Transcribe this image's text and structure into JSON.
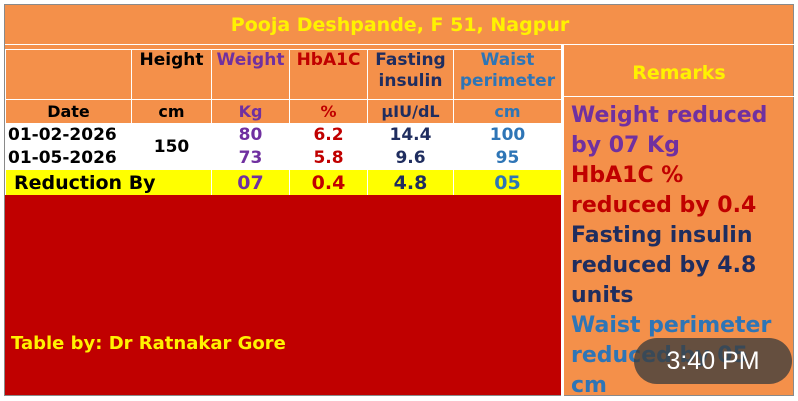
{
  "title": "Pooja Deshpande, F 51, Nagpur",
  "columns": {
    "date": "Date",
    "height": "Height",
    "weight": "Weight",
    "hba1c": "HbA1C",
    "fasting_line1": "Fasting",
    "fasting_line2": "insulin",
    "waist_line1": "Waist",
    "waist_line2": "perimeter"
  },
  "units": {
    "height": "cm",
    "weight": "Kg",
    "hba1c": "%",
    "fasting": "μIU/dL",
    "waist": "cm"
  },
  "rows": [
    {
      "date": "01-02-2026",
      "weight": "80",
      "hba1c": "6.2",
      "fasting": "14.4",
      "waist": "100"
    },
    {
      "date": "01-05-2026",
      "weight": "73",
      "hba1c": "5.8",
      "fasting": "9.6",
      "waist": "95"
    }
  ],
  "height_value": "150",
  "reduction": {
    "label": "Reduction By",
    "weight": "07",
    "hba1c": "0.4",
    "fasting": "4.8",
    "waist": "05"
  },
  "table_by": "Table by: Dr Ratnakar Gore",
  "remarks": {
    "heading": "Remarks",
    "weight_l1": "Weight reduced",
    "weight_l2": "by 07 Kg",
    "hba1c_l1": "HbA1C %",
    "hba1c_l2": "reduced by 0.4",
    "fasting_l1": "Fasting insulin",
    "fasting_l2": "reduced by 4.8",
    "fasting_l3": "units",
    "waist_l1": "Waist perimeter",
    "waist_l2": "reduced by 05",
    "waist_l3": "cm"
  },
  "overlay_time": "3:40 PM",
  "colors": {
    "background": "#f4904a",
    "title": "#fff200",
    "weight": "#7030a0",
    "hba1c": "#c00000",
    "fasting": "#1f2d5f",
    "waist": "#2e75b6",
    "reduction_row": "#ffff00",
    "red_block": "#c00000"
  }
}
